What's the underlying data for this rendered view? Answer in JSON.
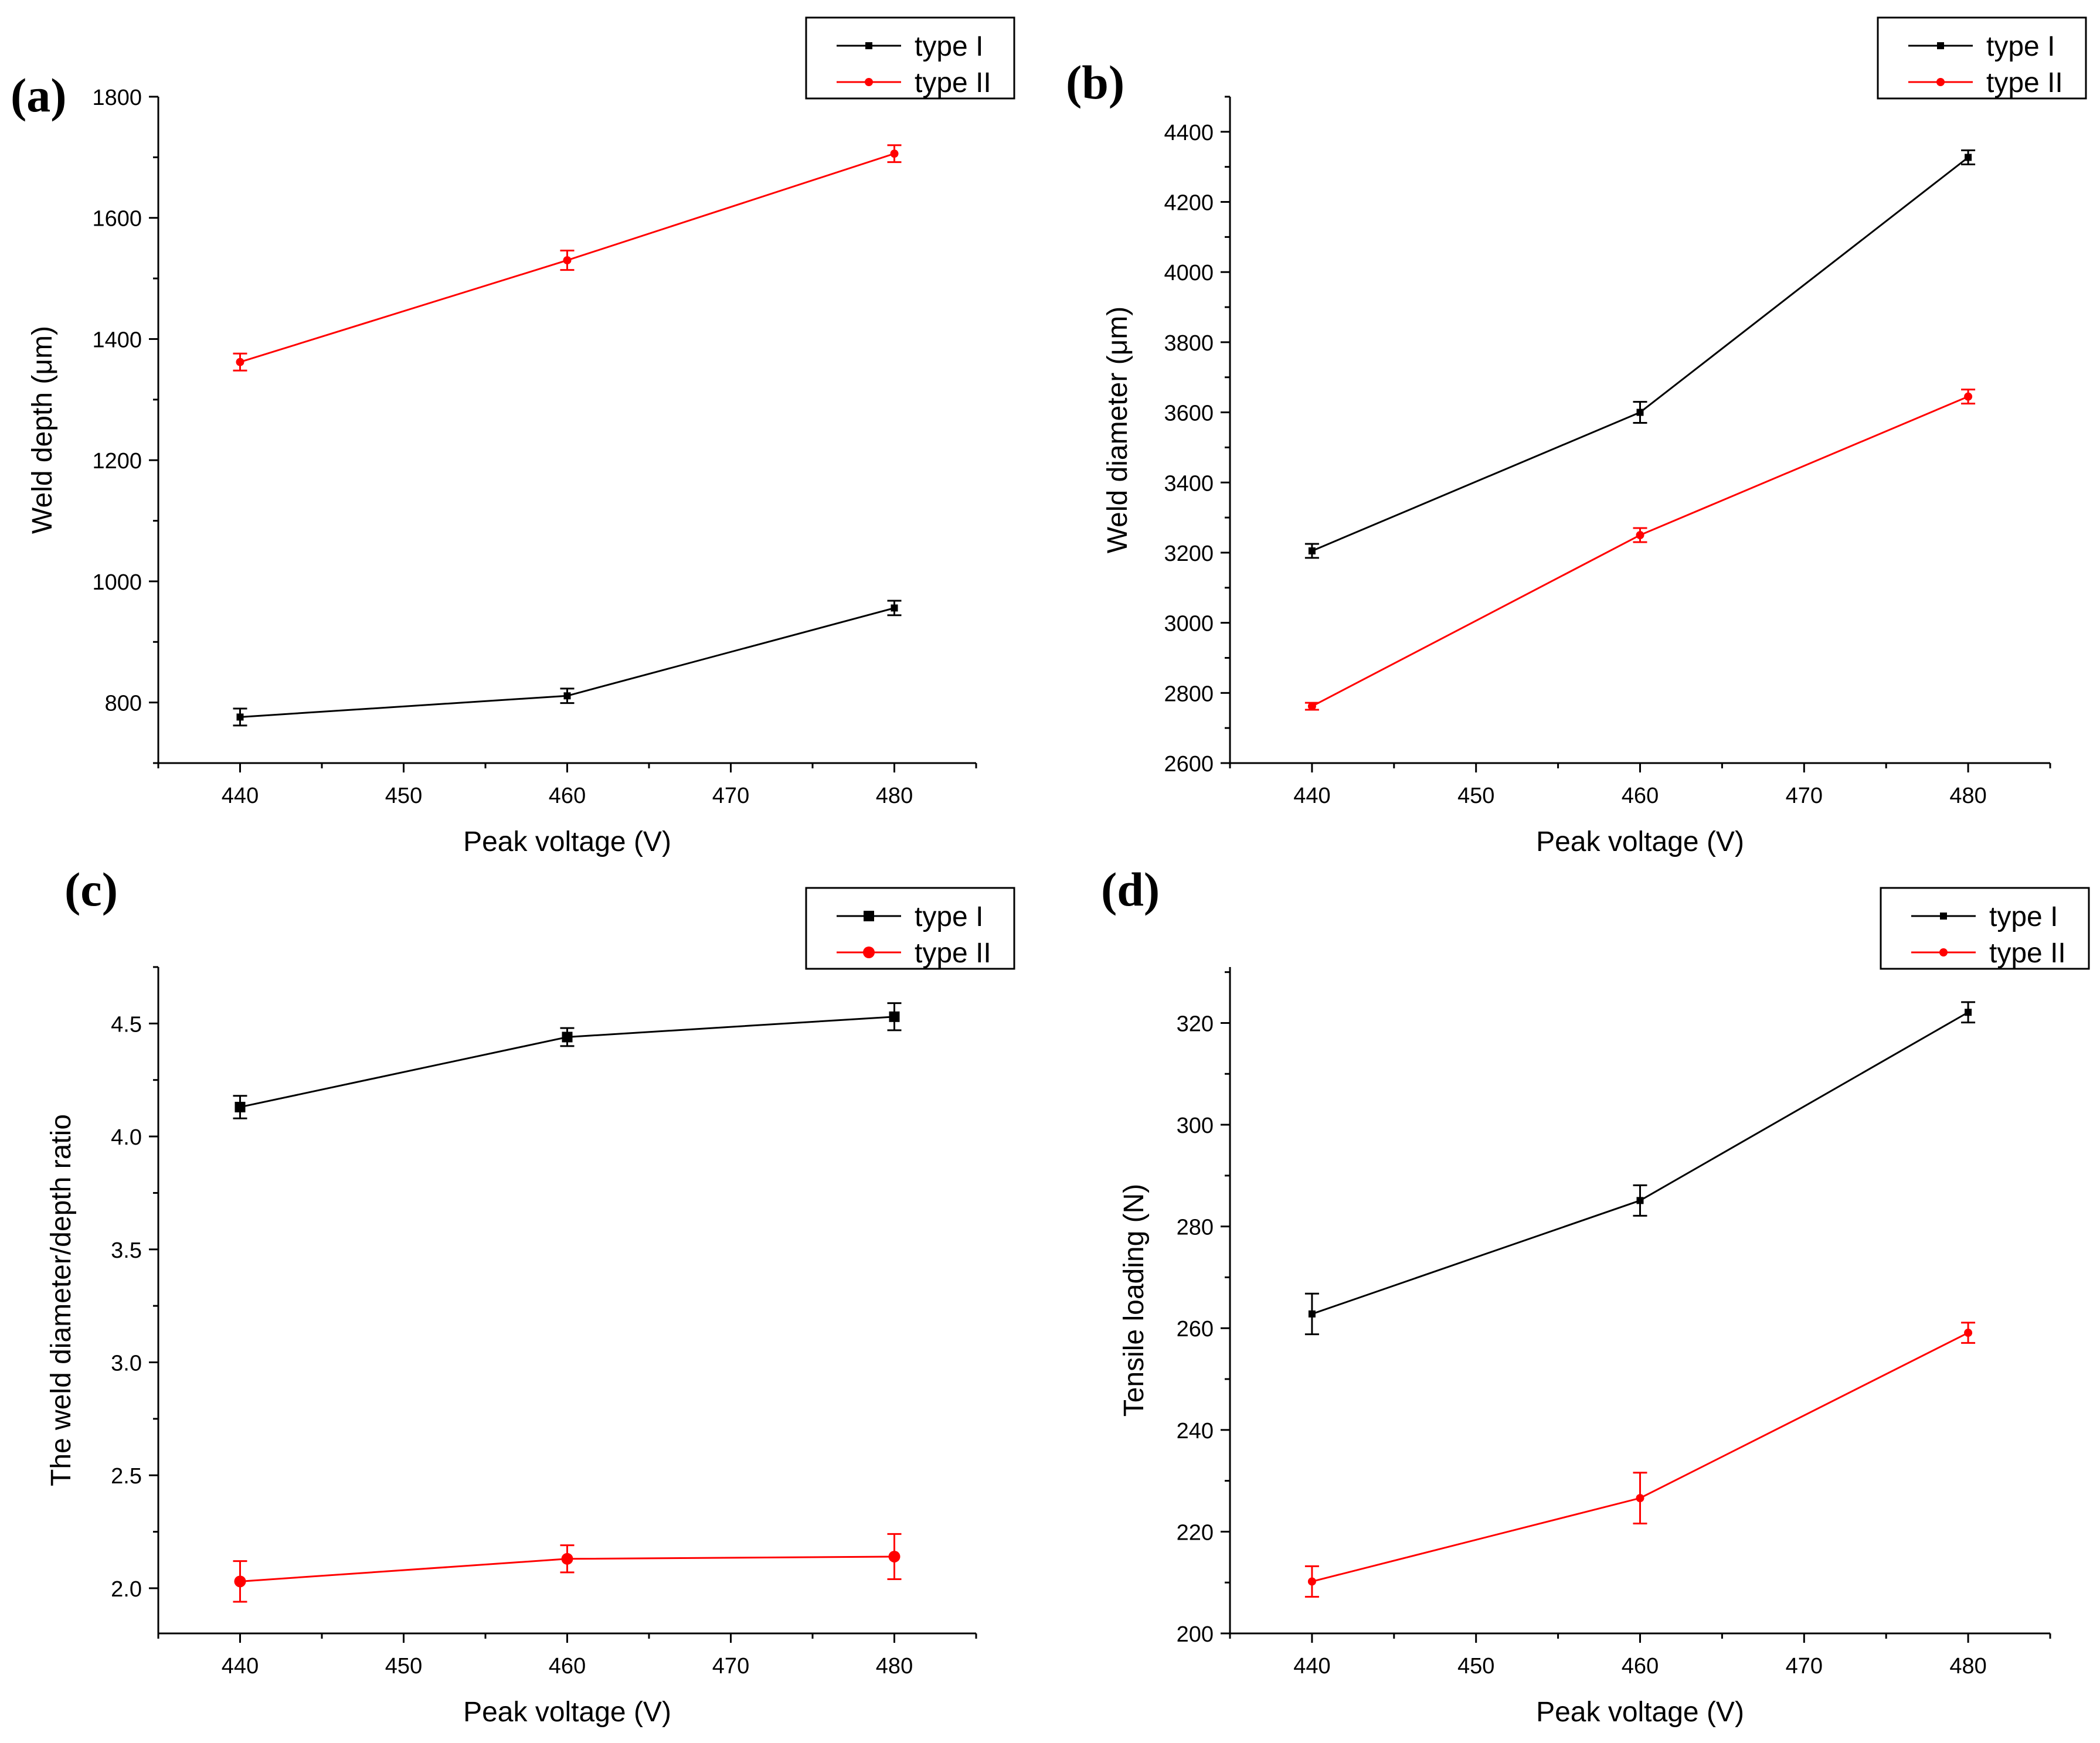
{
  "chart_data": [
    {
      "type": "line",
      "panel": "(a)",
      "xlabel": "Peak voltage (V)",
      "ylabel": "Weld depth (μm)",
      "x": [
        440,
        460,
        480
      ],
      "xlim": [
        435,
        485
      ],
      "xticks": [
        440,
        450,
        460,
        470,
        480
      ],
      "ylim": [
        700,
        1800
      ],
      "yticks": [
        800,
        1000,
        1200,
        1400,
        1600,
        1800
      ],
      "marker_size": "small",
      "legend_position": "top-right",
      "series": [
        {
          "name": "type I",
          "color": "#000000",
          "marker": "square",
          "values": [
            776,
            811,
            956
          ],
          "errors": [
            14,
            12,
            12
          ]
        },
        {
          "name": "type II",
          "color": "#ff0000",
          "marker": "circle",
          "values": [
            1362,
            1530,
            1706
          ],
          "errors": [
            14,
            16,
            14
          ]
        }
      ]
    },
    {
      "type": "line",
      "panel": "(b)",
      "xlabel": "Peak voltage (V)",
      "ylabel": "Weld diameter (μm)",
      "x": [
        440,
        460,
        480
      ],
      "xlim": [
        435,
        485
      ],
      "xticks": [
        440,
        450,
        460,
        470,
        480
      ],
      "ylim": [
        2600,
        4500
      ],
      "yticks": [
        2600,
        2800,
        3000,
        3200,
        3400,
        3600,
        3800,
        4000,
        4200,
        4400
      ],
      "marker_size": "small",
      "legend_position": "top-right",
      "series": [
        {
          "name": "type I",
          "color": "#000000",
          "marker": "square",
          "values": [
            3205,
            3600,
            4327
          ],
          "errors": [
            20,
            30,
            20
          ]
        },
        {
          "name": "type II",
          "color": "#ff0000",
          "marker": "circle",
          "values": [
            2762,
            3250,
            3645
          ],
          "errors": [
            10,
            20,
            20
          ]
        }
      ]
    },
    {
      "type": "line",
      "panel": "(c)",
      "xlabel": "Peak voltage (V)",
      "ylabel": "The weld diameter/depth ratio",
      "x": [
        440,
        460,
        480
      ],
      "xlim": [
        435,
        485
      ],
      "xticks": [
        440,
        450,
        460,
        470,
        480
      ],
      "ylim": [
        1.8,
        4.75
      ],
      "yticks": [
        "2.0",
        "2.5",
        "3.0",
        "3.5",
        "4.0",
        "4.5"
      ],
      "marker_size": "large",
      "legend_position": "top-right",
      "series": [
        {
          "name": "type I",
          "color": "#000000",
          "marker": "square",
          "values": [
            4.13,
            4.44,
            4.53
          ],
          "errors": [
            0.05,
            0.04,
            0.06
          ]
        },
        {
          "name": "type II",
          "color": "#ff0000",
          "marker": "circle",
          "values": [
            2.03,
            2.13,
            2.14
          ],
          "errors": [
            0.09,
            0.06,
            0.1
          ]
        }
      ]
    },
    {
      "type": "line",
      "panel": "(d)",
      "xlabel": "Peak voltage (V)",
      "ylabel": "Tensile loading (N)",
      "x": [
        440,
        460,
        480
      ],
      "xlim": [
        435,
        485
      ],
      "xticks": [
        440,
        450,
        460,
        470,
        480
      ],
      "ylim": [
        200,
        331
      ],
      "yticks": [
        200,
        220,
        240,
        260,
        280,
        300,
        320
      ],
      "marker_size": "small",
      "legend_position": "top-right",
      "series": [
        {
          "name": "type I",
          "color": "#000000",
          "marker": "square",
          "values": [
            262.8,
            285.1,
            322.1
          ],
          "errors": [
            4,
            3,
            2
          ]
        },
        {
          "name": "type II",
          "color": "#ff0000",
          "marker": "circle",
          "values": [
            210.2,
            226.6,
            259.1
          ],
          "errors": [
            3,
            5,
            2
          ]
        }
      ]
    }
  ]
}
